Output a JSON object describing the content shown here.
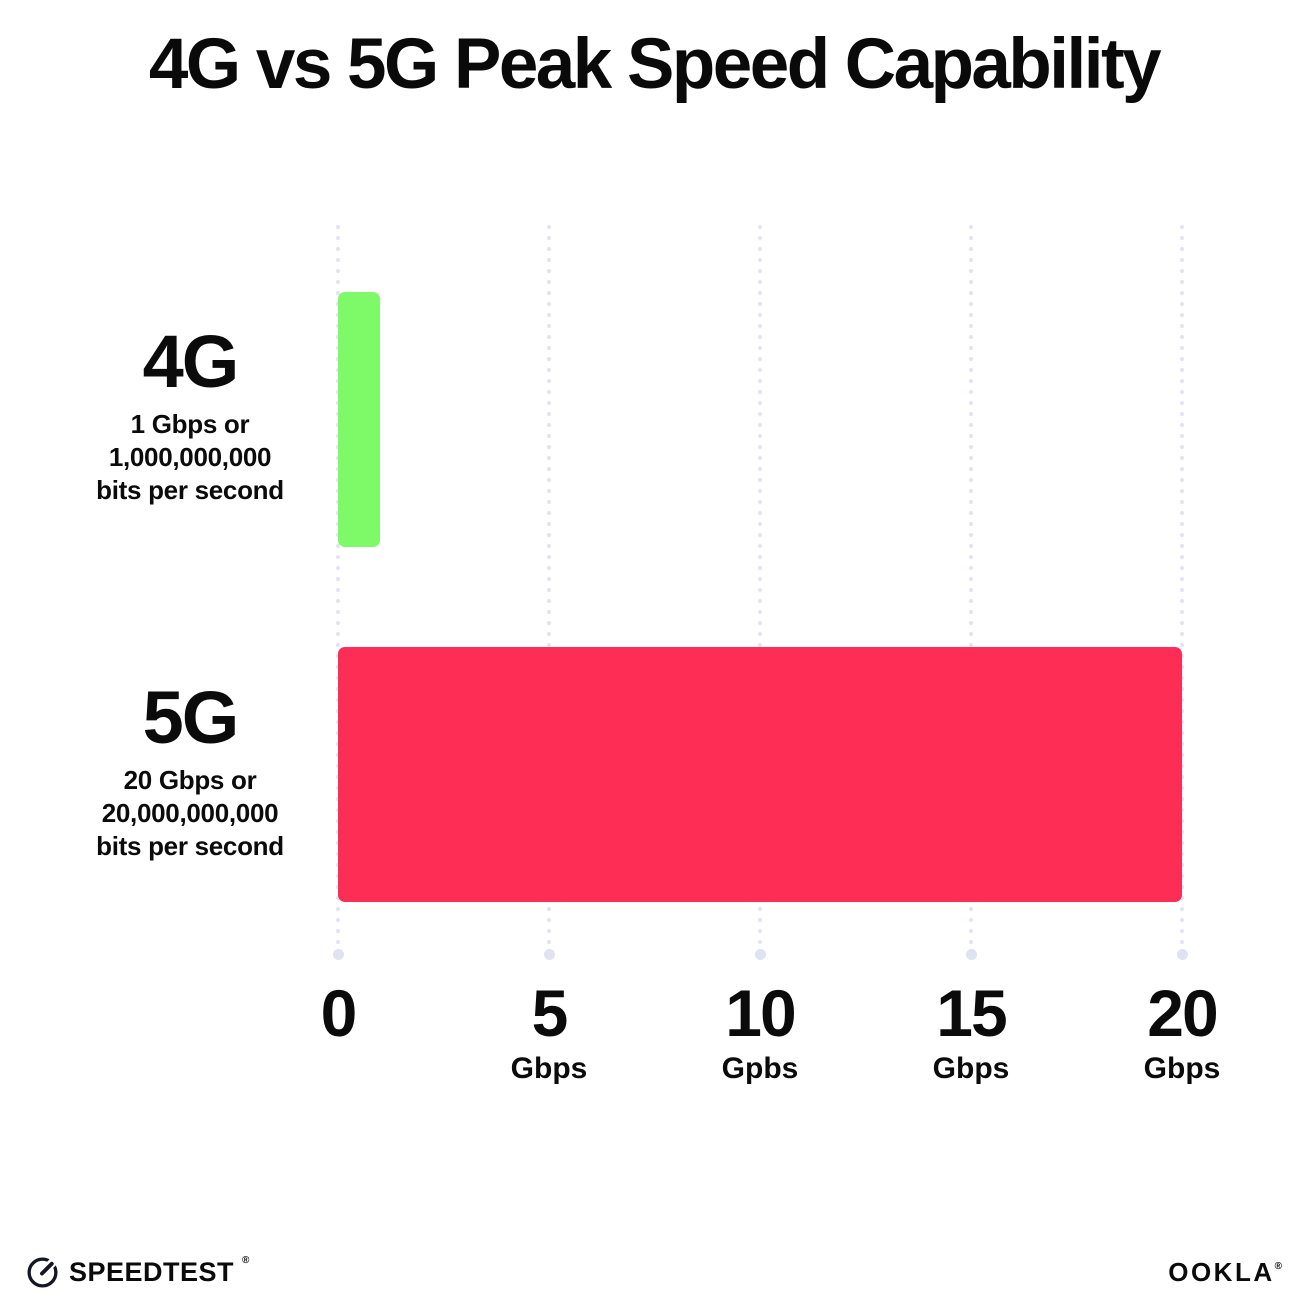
{
  "chart_data": {
    "type": "bar",
    "orientation": "horizontal",
    "title": "4G vs 5G Peak Speed Capability",
    "categories": [
      "4G",
      "5G"
    ],
    "values": [
      1,
      20
    ],
    "series": [
      {
        "name": "4G",
        "value": 1,
        "color": "#7EFA68",
        "label_heading": "4G",
        "label_lines": [
          "1 Gbps or",
          "1,000,000,000",
          "bits per second"
        ]
      },
      {
        "name": "5G",
        "value": 20,
        "color": "#FD2D56",
        "label_heading": "5G",
        "label_lines": [
          "20 Gbps or",
          "20,000,000,000",
          "bits per second"
        ]
      }
    ],
    "xlabel": "",
    "ylabel": "",
    "xlim": [
      0,
      20
    ],
    "x_ticks": [
      {
        "value": 0,
        "label": "0",
        "unit": ""
      },
      {
        "value": 5,
        "label": "5",
        "unit": "Gbps"
      },
      {
        "value": 10,
        "label": "10",
        "unit": "Gpbs"
      },
      {
        "value": 15,
        "label": "15",
        "unit": "Gbps"
      },
      {
        "value": 20,
        "label": "20",
        "unit": "Gbps"
      }
    ],
    "grid": "dotted-vertical",
    "legend": "none"
  },
  "colors": {
    "grid_dot": "#e4e4f2",
    "grid_end_dot": "#dfe2f0",
    "text": "#0b0b0b",
    "footer_text": "#141526"
  },
  "footer": {
    "speedtest_label": "SPEEDTEST",
    "speedtest_trademark": "®",
    "ookla_label": "OOKLA",
    "ookla_trademark": "®"
  }
}
